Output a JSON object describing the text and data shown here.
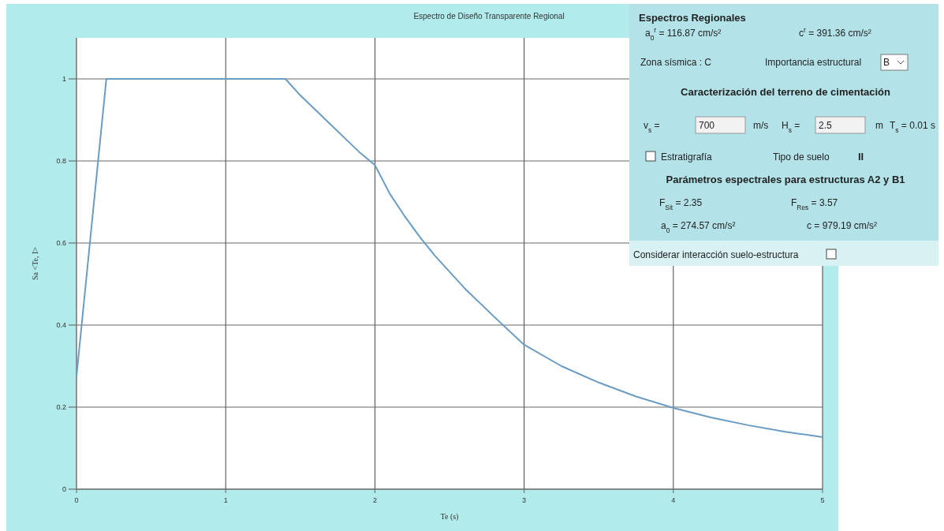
{
  "chart_data": [
    {
      "type": "line",
      "title": "Espectro de Diseño Transparente Regional",
      "xlabel": "Te (s)",
      "ylabel": "Sa <Te, I>",
      "xlim": [
        0,
        5
      ],
      "ylim": [
        0,
        1.1
      ],
      "xticks": [
        0,
        1,
        2,
        3,
        4,
        5
      ],
      "yticks": [
        0,
        0.2,
        0.4,
        0.6,
        0.8,
        1
      ],
      "grid": true,
      "marker": "none",
      "line_style": "solid",
      "series": [
        {
          "color": "#6a9bc3",
          "x": [
            0,
            0.2,
            1.4,
            1.5,
            1.6,
            1.7,
            1.8,
            1.9,
            2.0,
            2.1,
            2.2,
            2.3,
            2.4,
            2.5,
            2.6,
            2.8,
            3.0,
            3.25,
            3.5,
            3.75,
            4.0,
            4.25,
            4.5,
            4.75,
            5.0
          ],
          "values": [
            0.275,
            1,
            1,
            0.96,
            0.925,
            0.89,
            0.855,
            0.82,
            0.79,
            0.72,
            0.665,
            0.615,
            0.57,
            0.53,
            0.49,
            0.42,
            0.352,
            0.3,
            0.26,
            0.226,
            0.198,
            0.175,
            0.156,
            0.14,
            0.127
          ]
        }
      ]
    },
    {
      "type": "other",
      "title": "Espectros Regionales",
      "annotations": [
        "a$_{0}$$^{r}$ = 116.87 cm/s²",
        "c$^{r}$ = 391.36 cm/s²",
        "Zona sísmica :   C",
        "Importancia estructural",
        "B",
        "Caracterización del terreno de cimentación",
        "v$_{s}$ =",
        "700",
        "m/s",
        "H$_{s}$ =",
        "2.5",
        "m",
        "T$_{s}$ =    0.01 s",
        "Estratigrafía",
        "Tipo de suelo",
        "II",
        "Parámetros espectrales para estructuras A2 y B1",
        "F$_{Sit}$ = 2.35",
        "F$_{Res}$ = 3.57",
        "a$_{0}$ = 274.57 cm/s²",
        "c =  979.19 cm/s²",
        "Considerar interacción suelo-estructura"
      ]
    }
  ]
}
